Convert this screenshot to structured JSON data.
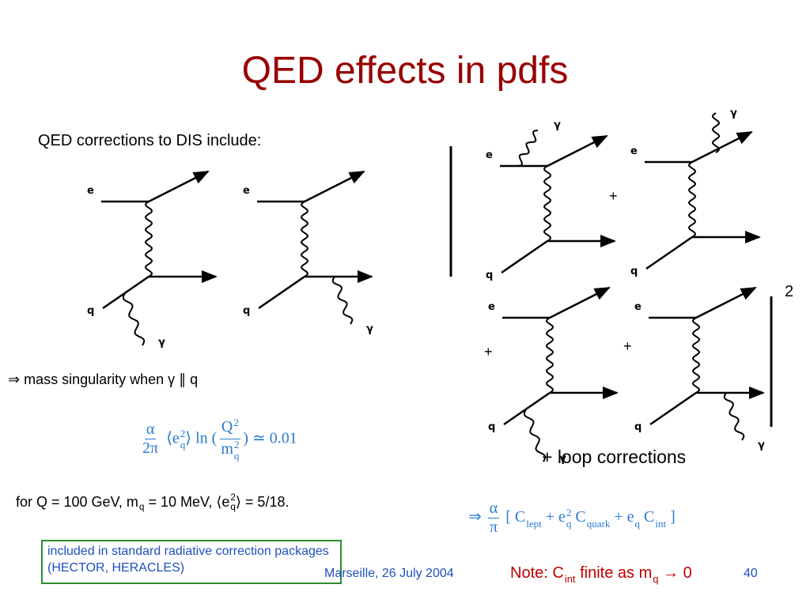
{
  "header": {
    "title": "QED effects in pdfs"
  },
  "intro": "QED corrections to DIS include:",
  "diagrams": [
    {
      "e": "e",
      "q": "q",
      "photon": "γ"
    },
    {
      "e": "e",
      "q": "q",
      "photon": "γ"
    },
    {
      "e": "e",
      "q": "q",
      "photon": "γ"
    },
    {
      "e": "e",
      "q": "q",
      "photon": "γ"
    },
    {
      "e": "e",
      "q": "q",
      "photon": "γ"
    },
    {
      "e": "e",
      "q": "q",
      "photon": "γ"
    }
  ],
  "plus_signs": [
    "+",
    "+",
    "+"
  ],
  "square": "2",
  "loop": "+ loop corrections",
  "singularity": "⇒ mass singularity when γ ∥ q",
  "formula1": [
    {
      "num": [
        {
          "text": "α"
        }
      ],
      "den": [
        {
          "text": "2π"
        }
      ]
    },
    {
      "text": " ⟨e",
      "sub": "q",
      "sup": "2"
    },
    {
      "text": "⟩ ln ("
    },
    {
      "num": [
        {
          "text": "Q",
          "sup": "2"
        }
      ],
      "den": [
        {
          "text": "m",
          "sub": "q",
          "sup": "2"
        }
      ]
    },
    {
      "text": ") ≃ 0.01"
    }
  ],
  "values_line": [
    {
      "text": "for Q = 100 GeV, m",
      "sub": "q"
    },
    {
      "text": " = 10 MeV, ⟨e",
      "sub": "q",
      "sup": "2"
    },
    {
      "text": "⟩ = 5/18."
    }
  ],
  "formula2": [
    {
      "text": "⇒  "
    },
    {
      "num": [
        {
          "text": "α"
        }
      ],
      "den": [
        {
          "text": "π"
        }
      ]
    },
    {
      "text": " [ C",
      "sub": "lept"
    },
    {
      "text": " + e",
      "sub": "q",
      "sup": "2"
    },
    {
      "text": " C",
      "sub": "quark"
    },
    {
      "text": " + e",
      "sub": "q"
    },
    {
      "text": " C",
      "sub": "int"
    },
    {
      "text": " ]"
    }
  ],
  "box": "included in standard radiative correction packages (HECTOR, HERACLES)",
  "footer": {
    "place_date": "Marseille, 26 July 2004",
    "note": [
      {
        "text": "Note: "
      },
      {
        "text": "C",
        "sub": "int"
      },
      {
        "text": " finite as m",
        "sub": "q"
      },
      {
        "text": " → 0"
      }
    ],
    "page": "40"
  }
}
